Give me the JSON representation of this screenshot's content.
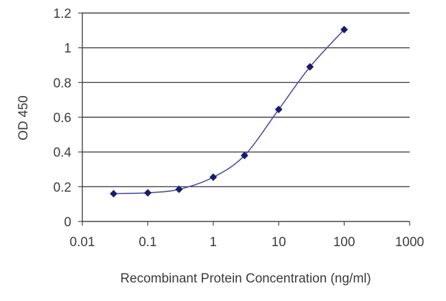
{
  "chart_data": {
    "type": "line",
    "title": "",
    "xlabel": "Recombinant Protein Concentration (ng/ml)",
    "ylabel": "OD 450",
    "x_scale": "log",
    "xlim": [
      0.01,
      1000
    ],
    "ylim": [
      0,
      1.2
    ],
    "x_ticks": [
      0.01,
      0.1,
      1,
      10,
      100,
      1000
    ],
    "x_tick_labels": [
      "0.01",
      "0.1",
      "1",
      "10",
      "100",
      "1000"
    ],
    "y_ticks": [
      0,
      0.2,
      0.4,
      0.6,
      0.8,
      1,
      1.2
    ],
    "y_tick_labels": [
      "0",
      "0.2",
      "0.4",
      "0.6",
      "0.8",
      "1",
      "1.2"
    ],
    "grid": "horizontal",
    "legend": "none",
    "series": [
      {
        "x": [
          0.03,
          0.1,
          0.3,
          1,
          3,
          10,
          30,
          100
        ],
        "y": [
          0.16,
          0.165,
          0.185,
          0.255,
          0.38,
          0.645,
          0.89,
          1.105
        ],
        "color": "#1a1a6e",
        "marker": "diamond",
        "line_color": "#4a4aa8"
      }
    ]
  }
}
